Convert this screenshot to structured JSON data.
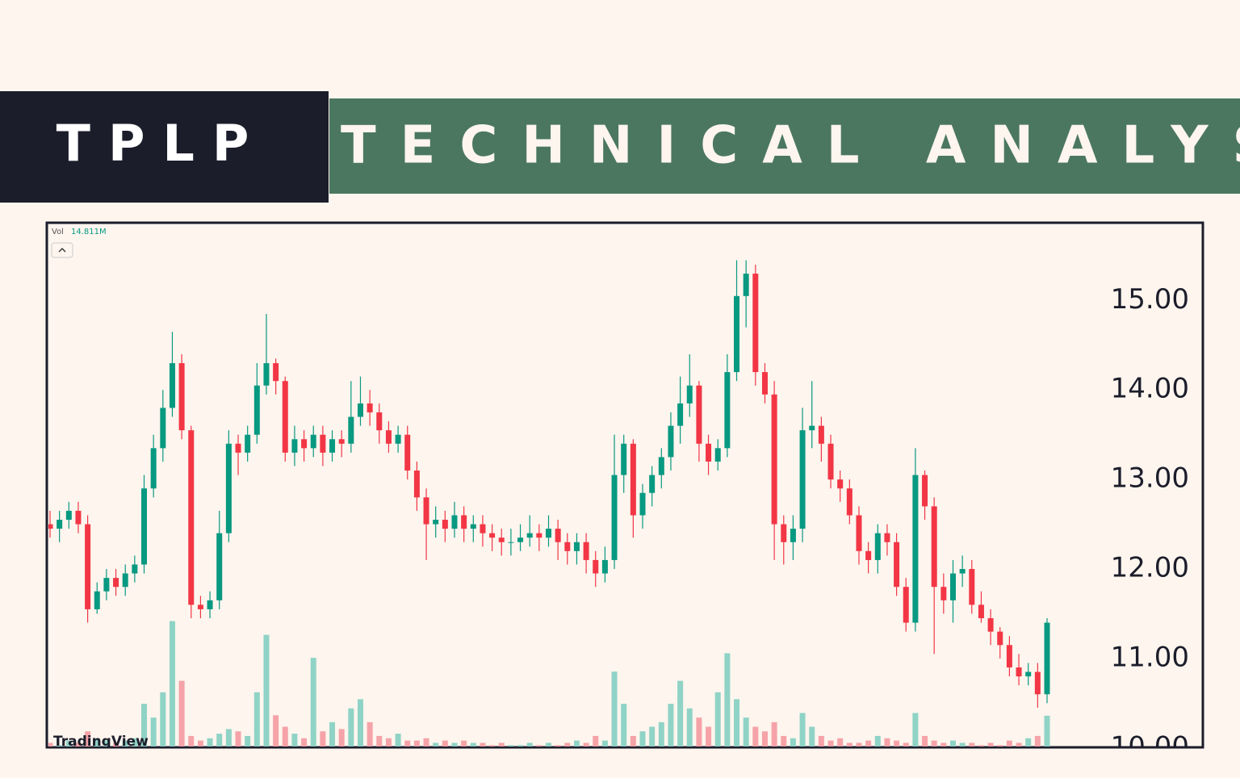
{
  "header": {
    "ticker": "TPLP",
    "title": "TECHNICAL ANALYSIS"
  },
  "chart_data": {
    "type": "candlestick",
    "watermark": "TradingView",
    "up_color": "#089981",
    "down_color": "#f23645",
    "volume_up_color": "#8fd3c6",
    "volume_down_color": "#f5a3a8",
    "ylim": [
      9.98,
      15.86
    ],
    "yticks": [
      {
        "value": 10,
        "label": "10.00"
      },
      {
        "value": 11,
        "label": "11.00"
      },
      {
        "value": 12,
        "label": "12.00"
      },
      {
        "value": 13,
        "label": "13.00"
      },
      {
        "value": 14,
        "label": "14.00"
      },
      {
        "value": 15,
        "label": "15.00"
      }
    ],
    "open": [
      12.5,
      12.45,
      12.55,
      12.65,
      12.5,
      11.55,
      11.75,
      11.9,
      11.8,
      11.95,
      12.05,
      12.9,
      13.35,
      13.8,
      14.3,
      13.55,
      11.6,
      11.55,
      11.65,
      12.4,
      13.4,
      13.3,
      13.5,
      14.05,
      14.3,
      14.1,
      13.3,
      13.45,
      13.35,
      13.5,
      13.3,
      13.45,
      13.4,
      13.7,
      13.85,
      13.75,
      13.55,
      13.4,
      13.5,
      13.1,
      12.8,
      12.5,
      12.55,
      12.45,
      12.6,
      12.45,
      12.5,
      12.4,
      12.35,
      12.3,
      12.3,
      12.35,
      12.4,
      12.35,
      12.45,
      12.3,
      12.2,
      12.3,
      12.1,
      11.95,
      12.1,
      13.05,
      13.4,
      12.6,
      12.85,
      13.05,
      13.25,
      13.6,
      13.85,
      14.05,
      13.4,
      13.2,
      13.35,
      14.2,
      15.05,
      15.3,
      14.2,
      13.95,
      12.5,
      12.3,
      12.45,
      13.55,
      13.6,
      13.4,
      13.0,
      12.9,
      12.6,
      12.2,
      12.1,
      12.4,
      12.3,
      11.8,
      11.4,
      13.05,
      12.7,
      11.8,
      11.65,
      11.95,
      12.0,
      11.6,
      11.45,
      11.3,
      11.15,
      10.9,
      10.8,
      10.85,
      10.6
    ],
    "high": [
      12.65,
      12.65,
      12.75,
      12.75,
      12.6,
      11.85,
      12.0,
      12.0,
      12.05,
      12.15,
      13.05,
      13.5,
      14.0,
      14.65,
      14.4,
      13.6,
      11.7,
      11.75,
      12.65,
      13.55,
      13.5,
      13.6,
      14.3,
      14.85,
      14.35,
      14.15,
      13.6,
      13.55,
      13.6,
      13.6,
      13.55,
      13.55,
      14.1,
      14.15,
      14.0,
      13.85,
      13.65,
      13.6,
      13.6,
      13.2,
      12.9,
      12.7,
      12.65,
      12.75,
      12.7,
      12.6,
      12.6,
      12.5,
      12.45,
      12.45,
      12.5,
      12.6,
      12.5,
      12.6,
      12.55,
      12.4,
      12.4,
      12.4,
      12.2,
      12.25,
      13.5,
      13.5,
      13.45,
      12.95,
      13.15,
      13.35,
      13.75,
      14.15,
      14.4,
      14.1,
      13.5,
      13.45,
      14.4,
      15.45,
      15.45,
      15.4,
      14.3,
      14.1,
      12.6,
      12.6,
      13.8,
      14.1,
      13.7,
      13.5,
      13.1,
      13.0,
      12.7,
      12.3,
      12.5,
      12.5,
      12.4,
      11.9,
      13.35,
      13.1,
      12.8,
      11.95,
      12.1,
      12.15,
      12.1,
      11.75,
      11.55,
      11.35,
      11.25,
      11.05,
      10.95,
      10.95,
      11.45
    ],
    "low": [
      12.35,
      12.3,
      12.45,
      12.4,
      11.4,
      11.5,
      11.65,
      11.7,
      11.7,
      11.85,
      11.95,
      12.8,
      13.2,
      13.7,
      13.45,
      11.45,
      11.45,
      11.45,
      11.55,
      12.3,
      13.05,
      13.2,
      13.4,
      13.95,
      13.95,
      13.2,
      13.15,
      13.2,
      13.25,
      13.15,
      13.2,
      13.25,
      13.3,
      13.6,
      13.6,
      13.4,
      13.3,
      13.3,
      13.0,
      12.65,
      12.1,
      12.35,
      12.3,
      12.35,
      12.3,
      12.3,
      12.25,
      12.2,
      12.15,
      12.15,
      12.2,
      12.25,
      12.2,
      12.25,
      12.1,
      12.05,
      12.05,
      11.95,
      11.8,
      11.85,
      12.0,
      12.85,
      12.35,
      12.45,
      12.7,
      12.9,
      13.1,
      13.4,
      13.7,
      13.2,
      13.05,
      13.1,
      13.25,
      14.1,
      14.7,
      14.05,
      13.85,
      12.1,
      12.05,
      12.1,
      12.3,
      13.35,
      13.2,
      12.9,
      12.75,
      12.5,
      12.05,
      11.95,
      11.95,
      12.15,
      11.7,
      11.3,
      11.3,
      12.55,
      11.05,
      11.5,
      11.4,
      11.8,
      11.5,
      11.4,
      11.15,
      11.0,
      10.8,
      10.7,
      10.7,
      10.45,
      10.5
    ],
    "close": [
      12.45,
      12.55,
      12.65,
      12.5,
      11.55,
      11.75,
      11.9,
      11.8,
      11.95,
      12.05,
      12.9,
      13.35,
      13.8,
      14.3,
      13.55,
      11.6,
      11.55,
      11.65,
      12.4,
      13.4,
      13.3,
      13.5,
      14.05,
      14.3,
      14.1,
      13.3,
      13.45,
      13.35,
      13.5,
      13.3,
      13.45,
      13.4,
      13.7,
      13.85,
      13.75,
      13.55,
      13.4,
      13.5,
      13.1,
      12.8,
      12.5,
      12.55,
      12.45,
      12.6,
      12.45,
      12.5,
      12.4,
      12.35,
      12.3,
      12.3,
      12.35,
      12.4,
      12.35,
      12.45,
      12.3,
      12.2,
      12.3,
      12.1,
      11.95,
      12.1,
      13.05,
      13.4,
      12.6,
      12.85,
      13.05,
      13.25,
      13.6,
      13.85,
      14.05,
      13.4,
      13.2,
      13.35,
      14.2,
      15.05,
      15.3,
      14.2,
      13.95,
      12.5,
      12.3,
      12.45,
      13.55,
      13.6,
      13.4,
      13.0,
      12.9,
      12.6,
      12.2,
      12.1,
      12.4,
      12.3,
      11.8,
      11.4,
      13.05,
      12.7,
      11.8,
      11.65,
      11.95,
      12.0,
      11.6,
      11.45,
      11.3,
      11.15,
      10.9,
      10.8,
      10.85,
      10.6,
      11.4
    ],
    "volume": {
      "name": "Vol",
      "last_label": "14.811M",
      "ylim": [
        0,
        229
      ],
      "values": [
        3,
        2,
        4,
        3,
        8,
        5,
        4,
        3,
        4,
        5,
        20,
        14,
        25,
        56,
        30,
        6,
        4,
        5,
        7,
        9,
        8,
        6,
        25,
        50,
        15,
        10,
        7,
        5,
        40,
        8,
        12,
        9,
        18,
        22,
        12,
        6,
        5,
        7,
        4,
        4,
        5,
        3,
        4,
        3,
        4,
        3,
        3,
        2,
        3,
        2,
        2,
        3,
        2,
        3,
        2,
        3,
        4,
        3,
        6,
        4,
        34,
        20,
        6,
        8,
        10,
        12,
        20,
        30,
        18,
        14,
        10,
        25,
        42,
        22,
        14,
        10,
        8,
        12,
        6,
        5,
        16,
        10,
        6,
        4,
        5,
        3,
        3,
        4,
        6,
        5,
        4,
        3,
        16,
        6,
        4,
        3,
        4,
        3,
        3,
        2,
        3,
        2,
        4,
        3,
        5,
        6,
        14.811
      ]
    }
  }
}
